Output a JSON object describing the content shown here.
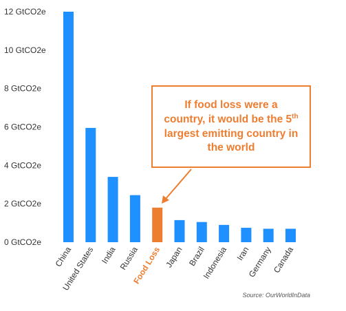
{
  "chart_data": {
    "type": "bar",
    "categories": [
      "China",
      "United States",
      "India",
      "Russia",
      "Food Loss",
      "Japan",
      "Brazil",
      "Indonesia",
      "Iran",
      "Germany",
      "Canada"
    ],
    "values": [
      12.0,
      5.95,
      3.4,
      2.45,
      1.8,
      1.15,
      1.05,
      0.9,
      0.75,
      0.7,
      0.7
    ],
    "highlight_category": "Food Loss",
    "ylim": [
      0,
      12
    ],
    "yticks": [
      "0 GtCO2e",
      "2 GtCO2e",
      "4 GtCO2e",
      "6 GtCO2e",
      "8 GtCO2e",
      "10 GtCO2e",
      "12 GtCO2e"
    ],
    "ytick_values": [
      0,
      2,
      4,
      6,
      8,
      10,
      12
    ],
    "grid": false,
    "colors": {
      "bar": "#1E90FF",
      "highlight": "#ED7D31"
    }
  },
  "callout": {
    "line1": "If food loss were a",
    "line2_a": "country, it would be the 5",
    "line2_sup": "th",
    "line3": "largest emitting country in",
    "line4": "the world"
  },
  "source": "Source: OurWorldInData"
}
